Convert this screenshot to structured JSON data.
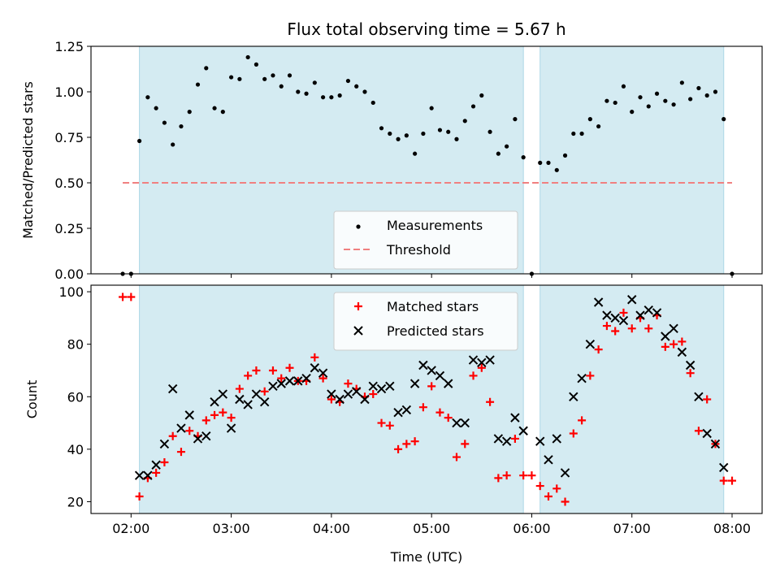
{
  "figure": {
    "title": "Flux total observing time = 5.67 h"
  },
  "colors": {
    "shade": "#add8e6",
    "measurement": "#000000",
    "threshold": "#f08080",
    "matched": "#ff0000",
    "predicted": "#000000"
  },
  "chart_data": [
    {
      "type": "scatter",
      "ylabel": "Matched/Predicted stars",
      "ylim": [
        0,
        1.25
      ],
      "yticks": [
        0,
        0.25,
        0.5,
        0.75,
        1.0,
        1.25
      ],
      "ytick_labels": [
        "0.00",
        "0.25",
        "0.50",
        "0.75",
        "1.00",
        "1.25"
      ],
      "xlim_hours": [
        1.6,
        8.3
      ],
      "legend_location": "lower-right",
      "shaded_spans": [
        [
          "02:05",
          "05:55"
        ],
        [
          "06:05",
          "07:55"
        ]
      ],
      "threshold": {
        "label": "Threshold",
        "y": 0.5,
        "x_range": [
          "01:55",
          "08:00"
        ],
        "style": "dashed"
      },
      "series": [
        {
          "name": "Measurements",
          "marker": "dot",
          "x": [
            "01:55",
            "02:00",
            "02:05",
            "02:10",
            "02:15",
            "02:20",
            "02:25",
            "02:30",
            "02:35",
            "02:40",
            "02:45",
            "02:50",
            "02:55",
            "03:00",
            "03:05",
            "03:10",
            "03:15",
            "03:20",
            "03:25",
            "03:30",
            "03:35",
            "03:40",
            "03:45",
            "03:50",
            "03:55",
            "04:00",
            "04:05",
            "04:10",
            "04:15",
            "04:20",
            "04:25",
            "04:30",
            "04:35",
            "04:40",
            "04:45",
            "04:50",
            "04:55",
            "05:00",
            "05:05",
            "05:10",
            "05:15",
            "05:20",
            "05:25",
            "05:30",
            "05:35",
            "05:40",
            "05:45",
            "05:50",
            "05:55",
            "06:00",
            "06:05",
            "06:10",
            "06:15",
            "06:20",
            "06:25",
            "06:30",
            "06:35",
            "06:40",
            "06:45",
            "06:50",
            "06:55",
            "07:00",
            "07:05",
            "07:10",
            "07:15",
            "07:20",
            "07:25",
            "07:30",
            "07:35",
            "07:40",
            "07:45",
            "07:50",
            "07:55",
            "08:00"
          ],
          "y": [
            0.0,
            0.0,
            0.73,
            0.97,
            0.91,
            0.83,
            0.71,
            0.81,
            0.89,
            1.04,
            1.13,
            0.91,
            0.89,
            1.08,
            1.07,
            1.19,
            1.15,
            1.07,
            1.09,
            1.03,
            1.09,
            1.0,
            0.99,
            1.05,
            0.97,
            0.97,
            0.98,
            1.06,
            1.03,
            1.0,
            0.94,
            0.8,
            0.77,
            0.74,
            0.76,
            0.66,
            0.77,
            0.91,
            0.79,
            0.78,
            0.74,
            0.84,
            0.92,
            0.98,
            0.78,
            0.66,
            0.7,
            0.85,
            0.64,
            0.0,
            0.61,
            0.61,
            0.57,
            0.65,
            0.77,
            0.77,
            0.85,
            0.81,
            0.95,
            0.94,
            1.03,
            0.89,
            0.97,
            0.92,
            0.99,
            0.95,
            0.93,
            1.05,
            0.96,
            1.02,
            0.98,
            1.0,
            0.85,
            0.0
          ]
        }
      ]
    },
    {
      "type": "scatter",
      "xlabel": "Time (UTC)",
      "ylabel": "Count",
      "ylim": [
        15.5,
        102.5
      ],
      "yticks": [
        20,
        40,
        60,
        80,
        100
      ],
      "ytick_labels": [
        "20",
        "40",
        "60",
        "80",
        "100"
      ],
      "xlim_hours": [
        1.6,
        8.3
      ],
      "xtick_labels": [
        "02:00",
        "03:00",
        "04:00",
        "05:00",
        "06:00",
        "07:00",
        "08:00"
      ],
      "legend_location": "upper-center",
      "shaded_spans": [
        [
          "02:05",
          "05:55"
        ],
        [
          "06:05",
          "07:55"
        ]
      ],
      "series": [
        {
          "name": "Matched stars",
          "marker": "plus",
          "x": [
            "01:55",
            "02:00",
            "02:05",
            "02:10",
            "02:15",
            "02:20",
            "02:25",
            "02:30",
            "02:35",
            "02:40",
            "02:45",
            "02:50",
            "02:55",
            "03:00",
            "03:05",
            "03:10",
            "03:15",
            "03:20",
            "03:25",
            "03:30",
            "03:35",
            "03:40",
            "03:45",
            "03:50",
            "03:55",
            "04:00",
            "04:05",
            "04:10",
            "04:15",
            "04:20",
            "04:25",
            "04:30",
            "04:35",
            "04:40",
            "04:45",
            "04:50",
            "04:55",
            "05:00",
            "05:05",
            "05:10",
            "05:15",
            "05:20",
            "05:25",
            "05:30",
            "05:35",
            "05:40",
            "05:45",
            "05:50",
            "05:55",
            "06:00",
            "06:05",
            "06:10",
            "06:15",
            "06:20",
            "06:25",
            "06:30",
            "06:35",
            "06:40",
            "06:45",
            "06:50",
            "06:55",
            "07:00",
            "07:05",
            "07:10",
            "07:15",
            "07:20",
            "07:25",
            "07:30",
            "07:35",
            "07:40",
            "07:45",
            "07:50",
            "07:55",
            "08:00"
          ],
          "y": [
            98,
            98,
            22,
            29,
            31,
            35,
            45,
            39,
            47,
            45,
            51,
            53,
            54,
            52,
            63,
            68,
            70,
            62,
            70,
            67,
            71,
            66,
            66,
            75,
            67,
            59,
            58,
            65,
            63,
            60,
            61,
            50,
            49,
            40,
            42,
            43,
            56,
            64,
            54,
            52,
            37,
            42,
            68,
            71,
            58,
            29,
            30,
            44,
            30,
            30,
            26,
            22,
            25,
            20,
            46,
            51,
            68,
            78,
            87,
            85,
            92,
            86,
            90,
            86,
            91,
            79,
            80,
            81,
            69,
            47,
            59,
            42,
            28,
            28
          ]
        },
        {
          "name": "Predicted stars",
          "marker": "x",
          "x": [
            "02:05",
            "02:10",
            "02:15",
            "02:20",
            "02:25",
            "02:30",
            "02:35",
            "02:40",
            "02:45",
            "02:50",
            "02:55",
            "03:00",
            "03:05",
            "03:10",
            "03:15",
            "03:20",
            "03:25",
            "03:30",
            "03:35",
            "03:40",
            "03:45",
            "03:50",
            "03:55",
            "04:00",
            "04:05",
            "04:10",
            "04:15",
            "04:20",
            "04:25",
            "04:30",
            "04:35",
            "04:40",
            "04:45",
            "04:50",
            "04:55",
            "05:00",
            "05:05",
            "05:10",
            "05:15",
            "05:20",
            "05:25",
            "05:30",
            "05:35",
            "05:40",
            "05:45",
            "05:50",
            "05:55",
            "06:05",
            "06:10",
            "06:15",
            "06:20",
            "06:25",
            "06:30",
            "06:35",
            "06:40",
            "06:45",
            "06:50",
            "06:55",
            "07:00",
            "07:05",
            "07:10",
            "07:15",
            "07:20",
            "07:25",
            "07:30",
            "07:35",
            "07:40",
            "07:45",
            "07:50",
            "07:55"
          ],
          "y": [
            30,
            30,
            34,
            42,
            63,
            48,
            53,
            44,
            45,
            58,
            61,
            48,
            59,
            57,
            61,
            58,
            64,
            65,
            66,
            66,
            67,
            71,
            69,
            61,
            59,
            61,
            62,
            59,
            64,
            63,
            64,
            54,
            55,
            65,
            72,
            70,
            68,
            65,
            50,
            50,
            74,
            73,
            74,
            44,
            43,
            52,
            47,
            43,
            36,
            44,
            31,
            60,
            67,
            80,
            96,
            91,
            90,
            89,
            97,
            91,
            93,
            92,
            83,
            86,
            77,
            72,
            60,
            46,
            42,
            33
          ]
        }
      ]
    }
  ]
}
